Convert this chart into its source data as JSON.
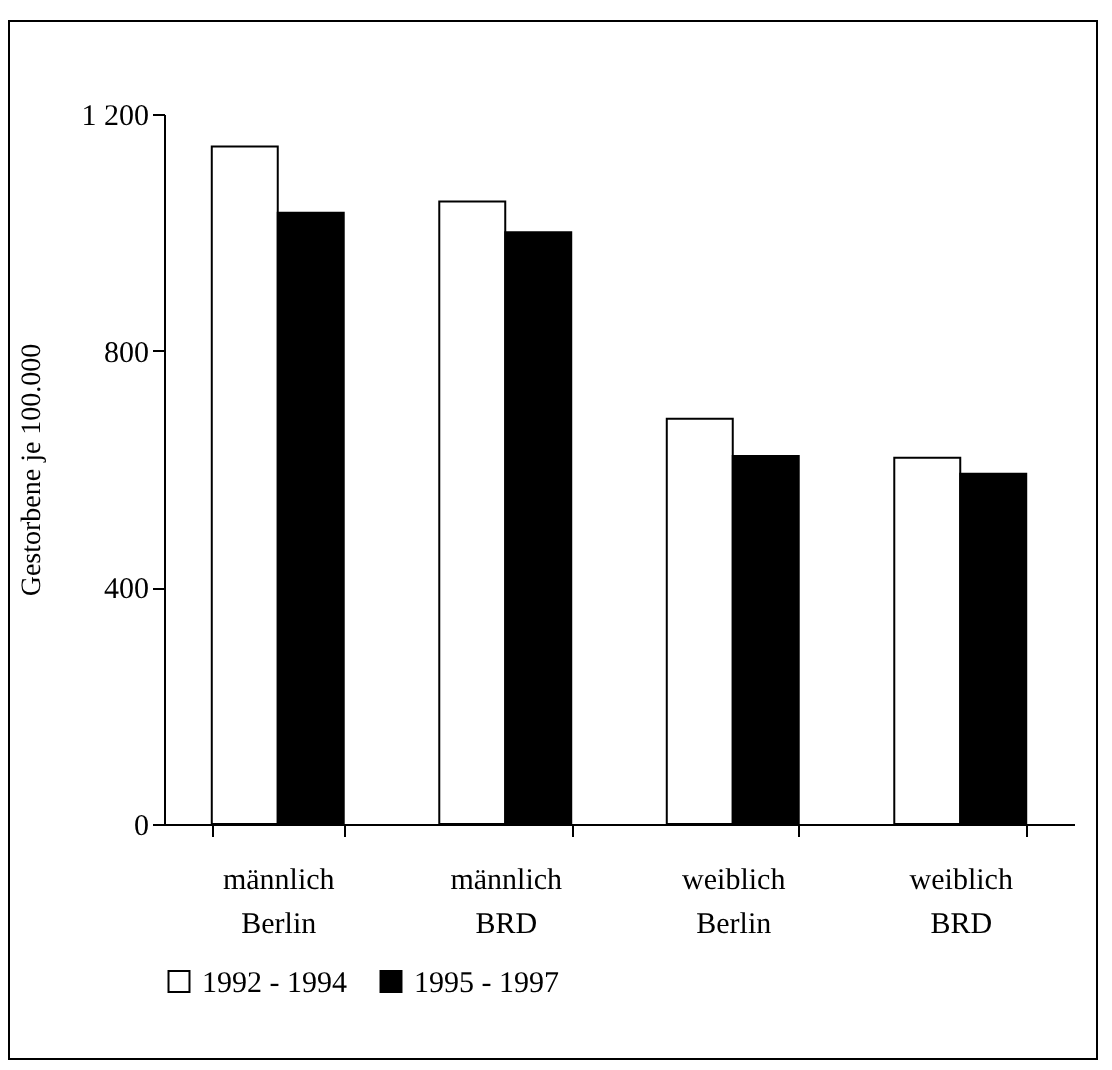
{
  "chart_data": {
    "type": "bar",
    "ylabel": "Gestorbene je 100.000",
    "categories": [
      "männlich\nBerlin",
      "männlich\nBRD",
      "weiblich\nBerlin",
      "weiblich\nBRD"
    ],
    "series": [
      {
        "name": "1992 - 1994",
        "color": "#ffffff",
        "values": [
          1145,
          1052,
          685,
          619
        ]
      },
      {
        "name": "1995 - 1997",
        "color": "#000000",
        "values": [
          1033,
          1000,
          622,
          592
        ]
      }
    ],
    "ylim": [
      0,
      1200
    ],
    "yticks": [
      0,
      400,
      800,
      {
        "value": 1200,
        "label": "1 200"
      }
    ],
    "grid": false,
    "legend": "bottom"
  }
}
